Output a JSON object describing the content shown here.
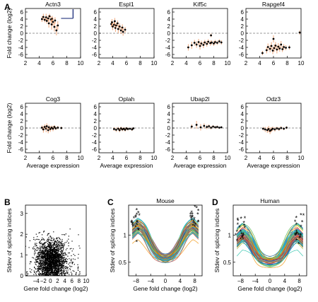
{
  "panel_letters": [
    "A",
    "B",
    "C",
    "D"
  ],
  "chart_data": [
    {
      "panel": "A",
      "type": "scatter",
      "title": "Actn3",
      "ylabel": "Fold change (log2)",
      "xlabel": "",
      "xlim": [
        2,
        10
      ],
      "ylim": [
        -7,
        7
      ],
      "xticks": [
        2,
        4,
        6,
        8,
        10
      ],
      "yticks": [
        -6,
        -4,
        -2,
        0,
        2,
        4,
        6
      ],
      "reference_line_y": 0,
      "points": [
        [
          4.4,
          4.0,
          0.8
        ],
        [
          4.6,
          4.6,
          0.9
        ],
        [
          4.8,
          3.8,
          0.7
        ],
        [
          5.0,
          4.5,
          1.0
        ],
        [
          5.1,
          3.5,
          0.8
        ],
        [
          5.3,
          4.2,
          0.9
        ],
        [
          5.4,
          2.8,
          1.2
        ],
        [
          5.5,
          4.8,
          0.7
        ],
        [
          5.7,
          3.9,
          0.9
        ],
        [
          5.8,
          2.5,
          1.5
        ],
        [
          5.9,
          4.1,
          0.8
        ],
        [
          6.0,
          3.2,
          1.1
        ],
        [
          6.2,
          1.8,
          1.3
        ],
        [
          6.3,
          3.6,
          0.9
        ],
        [
          6.5,
          0.8,
          1.4
        ],
        [
          6.7,
          2.2,
          1.2
        ]
      ],
      "inset_marker": true
    },
    {
      "panel": "A",
      "type": "scatter",
      "title": "Espl1",
      "xlim": [
        2,
        10
      ],
      "ylim": [
        -7,
        7
      ],
      "xticks": [
        2,
        4,
        6,
        8,
        10
      ],
      "yticks": [
        -6,
        -4,
        -2,
        0,
        2,
        4,
        6
      ],
      "reference_line_y": 0,
      "points": [
        [
          3.8,
          2.6,
          0.8
        ],
        [
          3.9,
          3.1,
          0.9
        ],
        [
          4.0,
          1.9,
          1.0
        ],
        [
          4.2,
          2.4,
          0.8
        ],
        [
          4.3,
          3.4,
          0.9
        ],
        [
          4.4,
          1.5,
          1.1
        ],
        [
          4.5,
          2.2,
          0.7
        ],
        [
          4.7,
          2.8,
          0.8
        ],
        [
          4.8,
          1.2,
          1.2
        ],
        [
          5.0,
          1.9,
          0.9
        ],
        [
          5.2,
          0.8,
          1.0
        ],
        [
          5.4,
          1.6,
          0.9
        ],
        [
          5.5,
          0.4,
          1.1
        ],
        [
          5.8,
          1.0,
          0.8
        ]
      ]
    },
    {
      "panel": "A",
      "type": "scatter",
      "title": "Kif5c",
      "xlim": [
        2,
        10
      ],
      "ylim": [
        -7,
        7
      ],
      "xticks": [
        2,
        4,
        6,
        8,
        10
      ],
      "yticks": [
        -6,
        -4,
        -2,
        0,
        2,
        4,
        6
      ],
      "reference_line_y": 0,
      "points": [
        [
          4.3,
          -4.0,
          0.9
        ],
        [
          4.8,
          -3.4,
          1.0
        ],
        [
          5.2,
          -2.7,
          0.8
        ],
        [
          5.5,
          -3.2,
          0.9
        ],
        [
          5.8,
          -2.5,
          0.9
        ],
        [
          6.0,
          -3.6,
          1.0
        ],
        [
          6.2,
          -2.9,
          0.8
        ],
        [
          6.5,
          -3.3,
          0.9
        ],
        [
          6.7,
          -2.6,
          0.7
        ],
        [
          7.0,
          -3.0,
          0.8
        ],
        [
          7.2,
          -2.4,
          0.7
        ],
        [
          7.5,
          -2.8,
          0.7
        ],
        [
          7.7,
          -2.6,
          0.6
        ],
        [
          8.0,
          -2.9,
          0.7
        ],
        [
          8.2,
          -2.5,
          0.6
        ],
        [
          8.5,
          -2.7,
          0.6
        ],
        [
          8.8,
          -2.3,
          0.6
        ],
        [
          9.1,
          -2.6,
          0.6
        ],
        [
          7.6,
          -0.6,
          0.5
        ]
      ]
    },
    {
      "panel": "A",
      "type": "scatter",
      "title": "Rapgef4",
      "xlim": [
        2,
        10
      ],
      "ylim": [
        -7,
        7
      ],
      "xticks": [
        2,
        4,
        6,
        8,
        10
      ],
      "yticks": [
        -6,
        -4,
        -2,
        0,
        2,
        4,
        6
      ],
      "reference_line_y": 0,
      "points": [
        [
          4.4,
          -5.6,
          0.6
        ],
        [
          5.0,
          -4.8,
          0.9
        ],
        [
          5.2,
          -3.9,
          1.0
        ],
        [
          5.5,
          -4.4,
          1.0
        ],
        [
          5.7,
          -3.6,
          1.1
        ],
        [
          5.9,
          -4.9,
          1.0
        ],
        [
          6.1,
          -4.2,
          1.1
        ],
        [
          6.3,
          -3.5,
          1.0
        ],
        [
          6.5,
          -4.6,
          1.1
        ],
        [
          6.7,
          -3.8,
          1.0
        ],
        [
          6.9,
          -4.3,
          0.9
        ],
        [
          7.1,
          -3.2,
          1.0
        ],
        [
          7.3,
          -4.5,
          0.8
        ],
        [
          7.5,
          -3.9,
          0.8
        ],
        [
          7.8,
          -4.1,
          0.7
        ],
        [
          6.0,
          -1.6,
          1.0
        ],
        [
          8.3,
          -4.0,
          0.6
        ],
        [
          9.8,
          0.2,
          0.6
        ]
      ]
    },
    {
      "panel": "A",
      "type": "scatter",
      "title": "Cog3",
      "ylabel": "Fold change (log2)",
      "xlabel": "Average expression",
      "xlim": [
        2,
        10
      ],
      "ylim": [
        -7,
        7
      ],
      "xticks": [
        2,
        4,
        6,
        8,
        10
      ],
      "yticks": [
        -6,
        -4,
        -2,
        0,
        2,
        4,
        6
      ],
      "reference_line_y": 0,
      "points": [
        [
          4.4,
          0.1,
          0.6
        ],
        [
          4.6,
          -0.4,
          0.9
        ],
        [
          4.8,
          0.3,
          0.7
        ],
        [
          5.0,
          -0.2,
          1.0
        ],
        [
          5.1,
          0.5,
          0.8
        ],
        [
          5.3,
          -0.6,
          0.9
        ],
        [
          5.4,
          0.2,
          0.7
        ],
        [
          5.6,
          -0.3,
          0.8
        ],
        [
          5.8,
          0.1,
          0.6
        ],
        [
          6.0,
          -0.2,
          0.7
        ],
        [
          6.2,
          0.3,
          0.5
        ],
        [
          6.4,
          -0.1,
          0.5
        ],
        [
          6.7,
          0.1,
          0.5
        ],
        [
          7.2,
          0.0,
          0.4
        ]
      ]
    },
    {
      "panel": "A",
      "type": "scatter",
      "title": "Oplah",
      "xlabel": "Average expression",
      "xlim": [
        2,
        10
      ],
      "ylim": [
        -7,
        7
      ],
      "xticks": [
        2,
        4,
        6,
        8,
        10
      ],
      "yticks": [
        -6,
        -4,
        -2,
        0,
        2,
        4,
        6
      ],
      "reference_line_y": 0,
      "points": [
        [
          4.2,
          -0.3,
          0.5
        ],
        [
          4.5,
          -0.5,
          0.6
        ],
        [
          4.8,
          -0.2,
          0.5
        ],
        [
          5.0,
          -0.6,
          0.6
        ],
        [
          5.2,
          -0.1,
          0.5
        ],
        [
          5.4,
          -0.4,
          0.5
        ],
        [
          5.6,
          -0.2,
          0.4
        ],
        [
          5.8,
          -0.5,
          0.5
        ],
        [
          6.0,
          -0.1,
          0.4
        ],
        [
          6.2,
          -0.3,
          0.4
        ],
        [
          6.5,
          -0.2,
          0.3
        ],
        [
          6.8,
          -0.4,
          0.4
        ],
        [
          7.0,
          -0.1,
          0.3
        ]
      ]
    },
    {
      "panel": "A",
      "type": "scatter",
      "title": "Ubap2l",
      "xlabel": "Average expression",
      "xlim": [
        2,
        10
      ],
      "ylim": [
        -7,
        7
      ],
      "xticks": [
        2,
        4,
        6,
        8,
        10
      ],
      "yticks": [
        -6,
        -4,
        -2,
        0,
        2,
        4,
        6
      ],
      "reference_line_y": 0,
      "points": [
        [
          4.8,
          0.4,
          0.6
        ],
        [
          5.5,
          0.9,
          1.1
        ],
        [
          6.1,
          0.2,
          0.9
        ],
        [
          6.6,
          0.6,
          0.7
        ],
        [
          7.0,
          0.3,
          0.6
        ],
        [
          7.3,
          0.5,
          0.5
        ],
        [
          7.6,
          0.1,
          0.5
        ],
        [
          7.9,
          0.4,
          0.4
        ],
        [
          8.2,
          0.2,
          0.4
        ],
        [
          8.5,
          0.3,
          0.4
        ],
        [
          8.8,
          0.1,
          0.3
        ],
        [
          9.1,
          0.2,
          0.3
        ]
      ]
    },
    {
      "panel": "A",
      "type": "scatter",
      "title": "Odz3",
      "xlabel": "Average expression",
      "xlim": [
        2,
        10
      ],
      "ylim": [
        -7,
        7
      ],
      "xticks": [
        2,
        4,
        6,
        8,
        10
      ],
      "yticks": [
        -6,
        -4,
        -2,
        0,
        2,
        4,
        6
      ],
      "reference_line_y": 0,
      "points": [
        [
          4.5,
          -0.2,
          0.5
        ],
        [
          4.8,
          -0.4,
          0.7
        ],
        [
          5.1,
          -0.6,
          0.8
        ],
        [
          5.3,
          -0.3,
          0.9
        ],
        [
          5.5,
          -0.8,
          0.9
        ],
        [
          5.7,
          -0.5,
          0.7
        ],
        [
          5.9,
          -0.2,
          0.6
        ],
        [
          6.2,
          -0.4,
          0.6
        ],
        [
          6.5,
          -0.1,
          0.5
        ],
        [
          6.8,
          -0.3,
          0.5
        ],
        [
          7.1,
          0.0,
          0.5
        ],
        [
          7.5,
          -0.2,
          0.4
        ],
        [
          7.9,
          0.1,
          0.4
        ]
      ]
    },
    {
      "panel": "B",
      "type": "scatter",
      "title": "",
      "xlabel": "Gene fold change (log2)",
      "ylabel": "Stdev of splicing indices",
      "xlim": [
        -7,
        10
      ],
      "ylim": [
        0,
        3.4
      ],
      "xticks": [
        -4,
        -2,
        0,
        2,
        4,
        6,
        8,
        10
      ],
      "xticklabels": [
        "−4",
        "−2",
        "0",
        "2",
        "4",
        "6",
        "8",
        "10"
      ],
      "yticks": [
        0,
        1,
        2,
        3
      ],
      "cloud": {
        "n": 2400,
        "x_center": 0.3,
        "x_spread": 2.0,
        "y_center": 0.75,
        "y_spread": 0.45
      }
    },
    {
      "panel": "C",
      "type": "line",
      "title": "Mouse",
      "xlabel": "Gene fold change (log2)",
      "ylabel": "Stdev of splicing indices",
      "xlim": [
        -10,
        10
      ],
      "ylim": [
        0.25,
        1.55
      ],
      "xticks": [
        -8,
        -4,
        0,
        4,
        8
      ],
      "xticklabels": [
        "−8",
        "−4",
        "0",
        "4",
        "8"
      ],
      "yticks": [
        0.5,
        1
      ],
      "curve_profile": {
        "outer_level": 1.2,
        "center_level": 0.55,
        "inflection": 4.2,
        "steepness": 0.9
      },
      "curve_count": 60,
      "endpoint_markers": "*"
    },
    {
      "panel": "D",
      "type": "line",
      "title": "Human",
      "xlabel": "Gene fold change (log2)",
      "ylabel": "Stdev of splicing indices",
      "xlim": [
        -10,
        10
      ],
      "ylim": [
        0.25,
        1.55
      ],
      "xticks": [
        -8,
        -4,
        0,
        4,
        8
      ],
      "xticklabels": [
        "−8",
        "−4",
        "0",
        "4",
        "8"
      ],
      "yticks": [
        0.5,
        1
      ],
      "curve_profile": {
        "outer_level": 1.05,
        "center_level": 0.5,
        "inflection": 4.5,
        "steepness": 1.0
      },
      "curve_count": 60,
      "endpoint_markers": "*"
    }
  ]
}
